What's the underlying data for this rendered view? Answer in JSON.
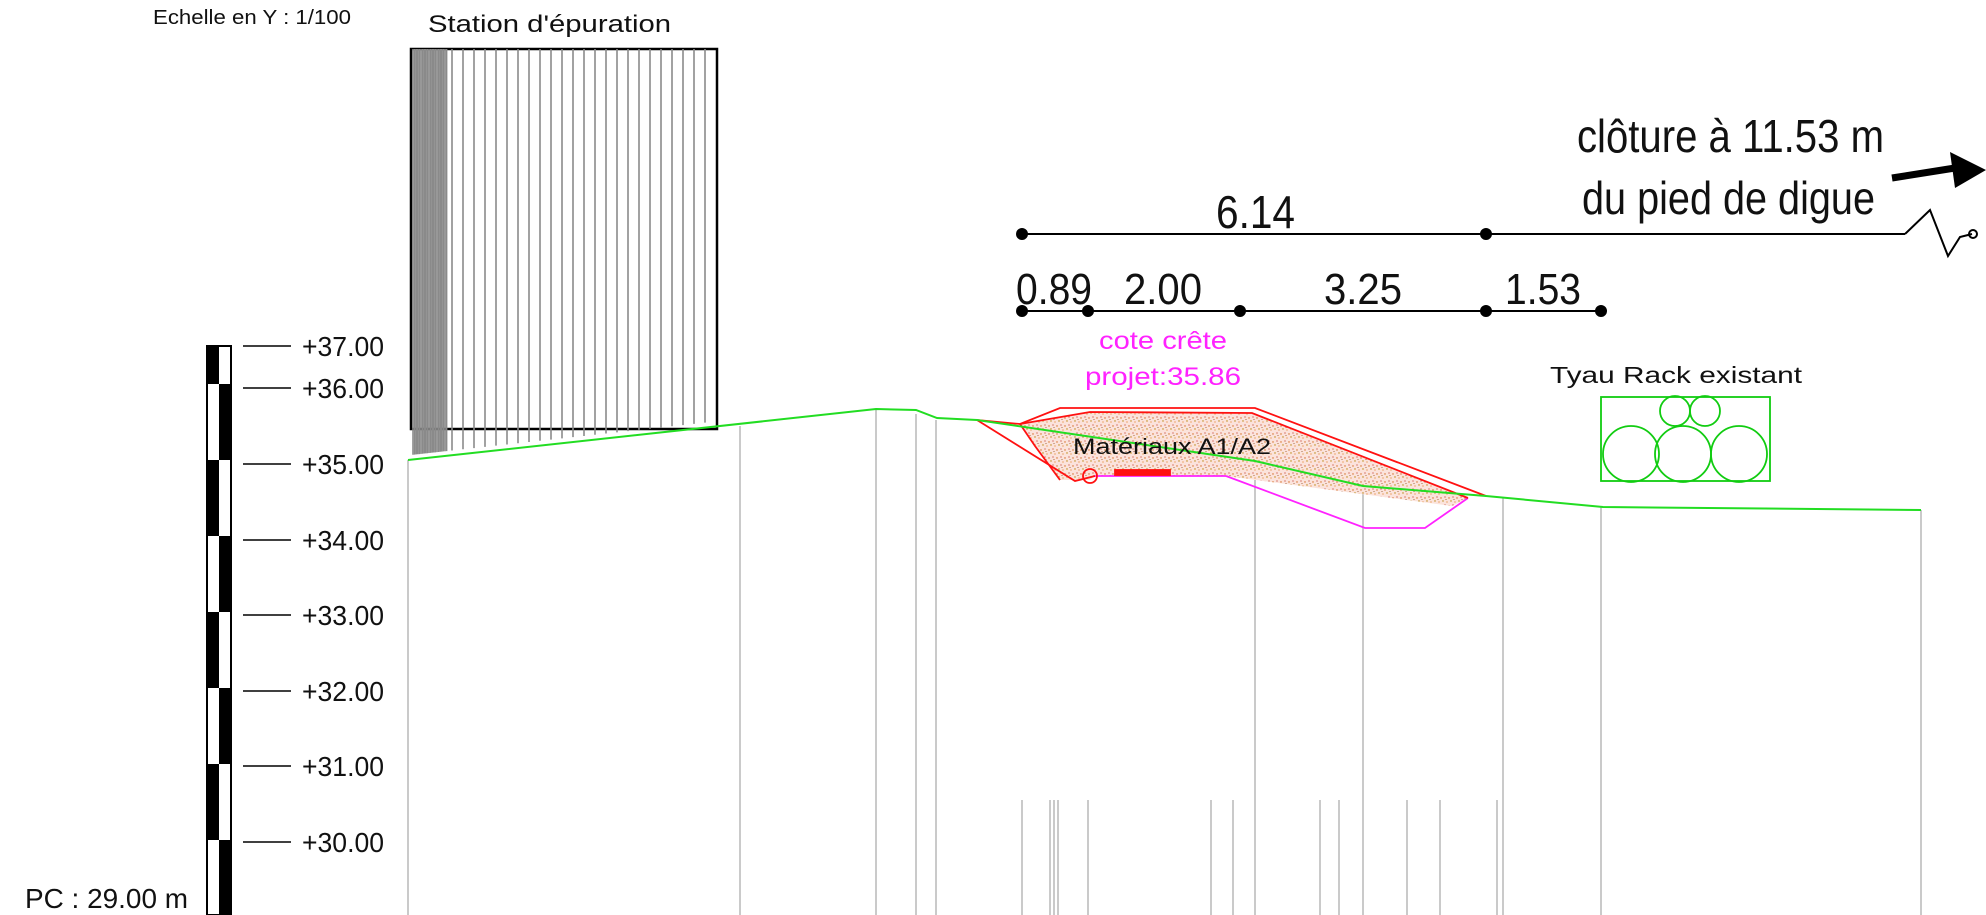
{
  "scale_label": "Echelle en Y : 1/100",
  "reference_label": "PC : 29.00 m",
  "elevation_ticks": [
    "+37.00",
    "+36.00",
    "+35.00",
    "+34.00",
    "+33.00",
    "+32.00",
    "+31.00",
    "+30.00"
  ],
  "station_label": "Station d'épuration",
  "fence_note": {
    "line1": "clôture à 11.53 m",
    "line2": "du pied de digue"
  },
  "dimensions": {
    "total": "6.14",
    "segments": [
      "0.89",
      "2.00",
      "3.25",
      "1.53"
    ]
  },
  "crest_label": {
    "line1": "cote crête",
    "line2": "projet:35.86"
  },
  "material_label": "Matériaux A1/A2",
  "pipe_rack_label": "Tyau Rack existant",
  "colors": {
    "terrain": "#22dd22",
    "dike_outline": "#ff1111",
    "excavation": "#ff22ff",
    "crest_text": "#ff22ff",
    "rack": "#11cc11",
    "station_hatch": "#8a8a8a"
  }
}
